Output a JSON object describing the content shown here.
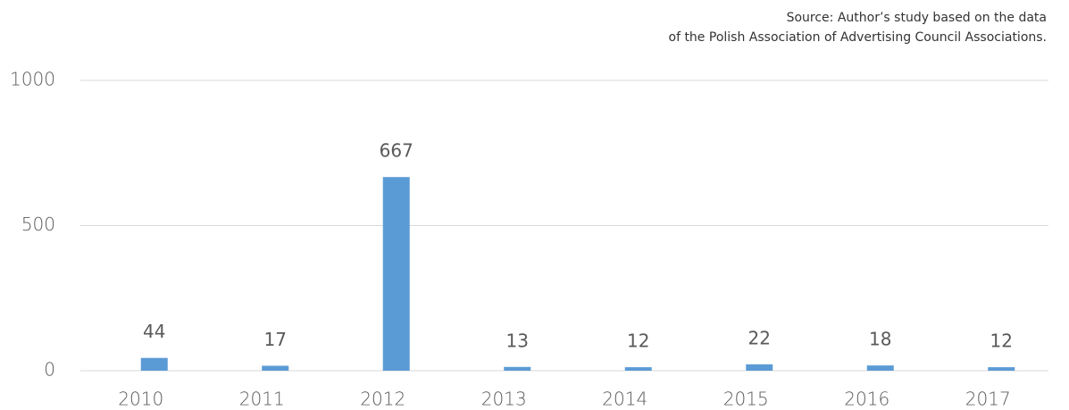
{
  "chart_data": {
    "type": "bar",
    "source": [
      "Source: Author’s study based on the data",
      "of the Polish Association of Advertising Council Associations."
    ],
    "categories": [
      "2010",
      "2011",
      "2012",
      "2013",
      "2014",
      "2015",
      "2016",
      "2017"
    ],
    "values": [
      44,
      17,
      667,
      13,
      12,
      22,
      18,
      12
    ],
    "color": "#5b9bd5",
    "ylim": [
      0,
      1000
    ],
    "yticks": [
      0,
      500,
      1000
    ],
    "grid": true,
    "data_labels": true
  }
}
